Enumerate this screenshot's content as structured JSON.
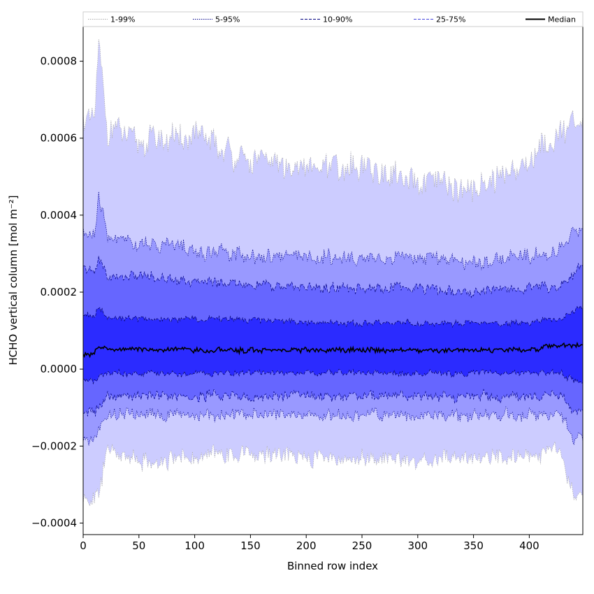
{
  "chart_data": {
    "type": "area",
    "xlabel": "Binned row index",
    "ylabel": "HCHO vertical column [mol m⁻²]",
    "xlim": [
      0,
      448
    ],
    "ylim": [
      -0.00043,
      0.00089
    ],
    "xticks": [
      0,
      50,
      100,
      150,
      200,
      250,
      300,
      350,
      400
    ],
    "yticks": [
      -0.0004,
      -0.0002,
      0.0,
      0.0002,
      0.0004,
      0.0006,
      0.0008
    ],
    "ytick_labels": [
      "−0.0004",
      "−0.0002",
      "0.0000",
      "0.0002",
      "0.0004",
      "0.0006",
      "0.0008"
    ],
    "grid": false,
    "legend_position": "top (above plot)",
    "x_anchors": [
      0,
      10,
      14,
      22,
      50,
      100,
      150,
      200,
      250,
      300,
      350,
      400,
      428,
      440,
      448
    ],
    "bands": [
      {
        "name": "1-99%",
        "color": "#ccccff",
        "line_color": "#aaaaaa",
        "line_style": "dotted",
        "upper": [
          0.00064,
          0.00066,
          0.00083,
          0.00063,
          0.0006,
          0.0006,
          0.00054,
          0.00053,
          0.00052,
          0.00049,
          0.00046,
          0.00054,
          0.00062,
          0.00064,
          0.00065
        ],
        "lower": [
          -0.00034,
          -0.00034,
          -0.00032,
          -0.00021,
          -0.00024,
          -0.00023,
          -0.00022,
          -0.00023,
          -0.00023,
          -0.00024,
          -0.00023,
          -0.00023,
          -0.00021,
          -0.00033,
          -0.00032
        ]
      },
      {
        "name": "5-95%",
        "color": "#9999ff",
        "line_color": "#00008b",
        "line_style": "dotted",
        "upper": [
          0.00035,
          0.00034,
          0.00045,
          0.00034,
          0.00033,
          0.00031,
          0.0003,
          0.00029,
          0.00029,
          0.00029,
          0.00028,
          0.00029,
          0.00031,
          0.00035,
          0.00037
        ],
        "lower": [
          -0.00018,
          -0.00018,
          -0.00016,
          -0.00012,
          -0.00012,
          -0.00012,
          -0.00012,
          -0.00012,
          -0.00012,
          -0.00012,
          -0.00012,
          -0.00012,
          -0.00012,
          -0.00018,
          -0.00017
        ]
      },
      {
        "name": "10-90%",
        "color": "#6666ff",
        "line_color": "#000080",
        "line_style": "dashed",
        "upper": [
          0.00026,
          0.00025,
          0.00029,
          0.00024,
          0.00024,
          0.00023,
          0.00022,
          0.00021,
          0.00021,
          0.00021,
          0.0002,
          0.00021,
          0.00022,
          0.00025,
          0.00027
        ],
        "lower": [
          -0.00011,
          -0.00011,
          -0.0001,
          -7e-05,
          -7e-05,
          -7e-05,
          -7e-05,
          -7e-05,
          -7e-05,
          -7e-05,
          -7e-05,
          -7e-05,
          -7e-05,
          -0.00011,
          -0.0001
        ]
      },
      {
        "name": "25-75%",
        "color": "#2b2bff",
        "line_color": "#000060",
        "line_style": "dashed",
        "upper": [
          0.00014,
          0.00014,
          0.00016,
          0.00013,
          0.00013,
          0.00013,
          0.00013,
          0.00012,
          0.00012,
          0.00012,
          0.00012,
          0.00012,
          0.00013,
          0.00015,
          0.00016
        ],
        "lower": [
          -3e-05,
          -3e-05,
          -2e-05,
          -1e-05,
          -1e-05,
          -1e-05,
          -1e-05,
          -1e-05,
          -1e-05,
          -1e-05,
          -1e-05,
          -1e-05,
          -1e-05,
          -3e-05,
          -3e-05
        ]
      }
    ],
    "median": {
      "name": "Median",
      "color": "#000000",
      "line_style": "solid",
      "values": [
        4e-05,
        4e-05,
        6e-05,
        5e-05,
        5e-05,
        5e-05,
        5e-05,
        5e-05,
        5e-05,
        5e-05,
        5e-05,
        5e-05,
        6e-05,
        6e-05,
        7e-05
      ]
    },
    "legend": [
      {
        "label": "1-99%",
        "color": "#aaaaaa",
        "style": "dotted"
      },
      {
        "label": "5-95%",
        "color": "#00008b",
        "style": "dotted"
      },
      {
        "label": "10-90%",
        "color": "#000080",
        "style": "dashed"
      },
      {
        "label": "25-75%",
        "color": "#4444dd",
        "style": "dashed"
      },
      {
        "label": "Median",
        "color": "#000000",
        "style": "solid"
      }
    ]
  }
}
